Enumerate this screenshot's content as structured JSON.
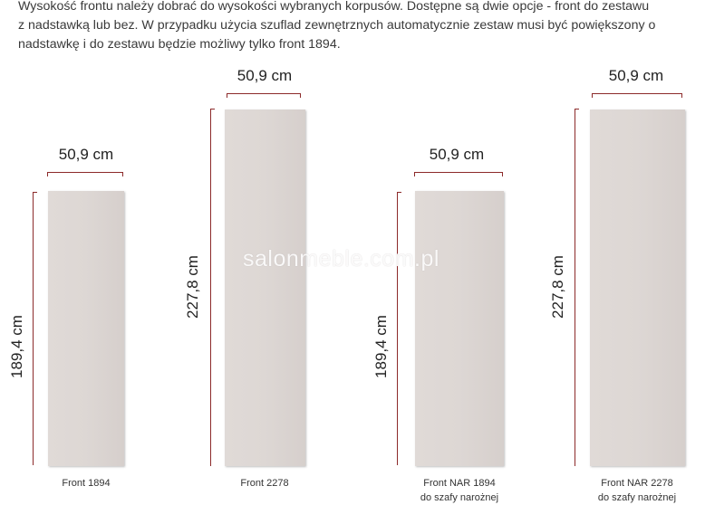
{
  "intro_text": "Wysokość frontu należy dobrać do wysokości wybranych korpusów. Dostępne są dwie opcje - front do zestawu\nz nadstawką lub bez. W przypadku użycia szuflad zewnętrznych automatycznie zestaw musi być powiększony o\nnadstawkę i do zestawu będzie możliwy tylko front 1894.",
  "watermark": "salonmeble.com.pl",
  "fronts": [
    {
      "width_label": "50,9 cm",
      "height_label": "189,4 cm",
      "caption_line1": "Front 1894",
      "caption_line2": ""
    },
    {
      "width_label": "50,9 cm",
      "height_label": "227,8 cm",
      "caption_line1": "Front 2278",
      "caption_line2": ""
    },
    {
      "width_label": "50,9 cm",
      "height_label": "189,4 cm",
      "caption_line1": "Front NAR 1894",
      "caption_line2": "do szafy narożnej"
    },
    {
      "width_label": "50,9 cm",
      "height_label": "227,8 cm",
      "caption_line1": "Front NAR 2278",
      "caption_line2": "do szafy narożnej"
    }
  ],
  "colors": {
    "panel": "#ddd7d4",
    "dimension_line": "#8c2a2a"
  }
}
